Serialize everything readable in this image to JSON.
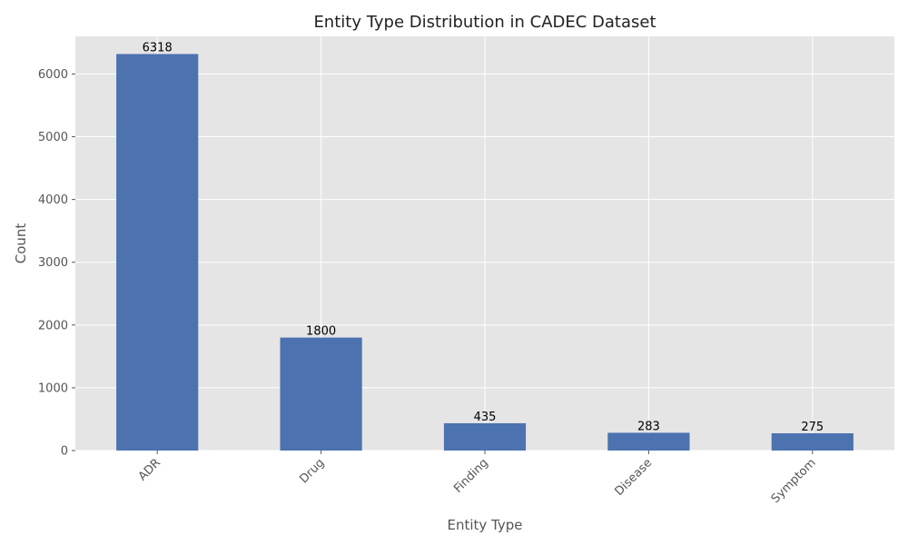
{
  "chart_data": {
    "type": "bar",
    "title": "Entity Type Distribution in CADEC Dataset",
    "xlabel": "Entity Type",
    "ylabel": "Count",
    "categories": [
      "ADR",
      "Drug",
      "Finding",
      "Disease",
      "Symptom"
    ],
    "values": [
      6318,
      1800,
      435,
      283,
      275
    ],
    "data_labels": [
      "6318",
      "1800",
      "435",
      "283",
      "275"
    ],
    "ylim": [
      0,
      6600
    ],
    "yticks": [
      0,
      1000,
      2000,
      3000,
      4000,
      5000,
      6000
    ],
    "ytick_labels": [
      "0",
      "1000",
      "2000",
      "3000",
      "4000",
      "5000",
      "6000"
    ],
    "grid": true,
    "legend": "none",
    "colors": {
      "bar": "#4c72b0",
      "plot_background": "#e5e5e5",
      "grid": "#ffffff"
    }
  }
}
